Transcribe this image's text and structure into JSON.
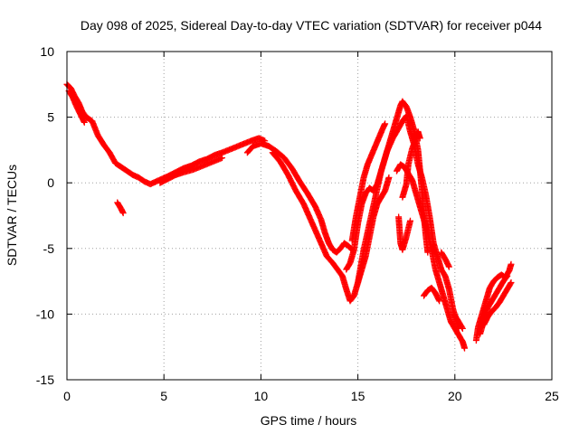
{
  "chart_data": {
    "type": "scatter",
    "title": "Day 098 of 2025, Sidereal Day-to-day VTEC variation (SDTVAR) for receiver p044",
    "xlabel": "GPS time / hours",
    "ylabel": "SDTVAR / TECUs",
    "xlim": [
      0,
      25
    ],
    "ylim": [
      -15,
      10
    ],
    "xticks": [
      "0",
      "5",
      "10",
      "15",
      "20",
      "25"
    ],
    "yticks": [
      "10",
      "5",
      "0",
      "-5",
      "-10",
      "-15"
    ],
    "grid": true,
    "marker": "+",
    "series": [
      {
        "name": "SDTVAR",
        "color": "#ff0000",
        "tracks": [
          [
            [
              0.0,
              7.5
            ],
            [
              0.2,
              7.2
            ],
            [
              0.4,
              6.6
            ],
            [
              0.6,
              6.1
            ],
            [
              0.8,
              5.4
            ],
            [
              1.0,
              5.0
            ],
            [
              1.3,
              4.7
            ],
            [
              1.6,
              3.6
            ],
            [
              1.9,
              2.9
            ],
            [
              2.2,
              2.3
            ],
            [
              2.5,
              1.5
            ],
            [
              2.8,
              1.2
            ],
            [
              3.1,
              0.9
            ],
            [
              3.4,
              0.6
            ],
            [
              3.7,
              0.4
            ],
            [
              4.0,
              0.1
            ],
            [
              4.3,
              -0.1
            ],
            [
              4.6,
              0.1
            ],
            [
              4.9,
              0.3
            ],
            [
              5.2,
              0.5
            ],
            [
              5.6,
              0.8
            ],
            [
              6.0,
              1.1
            ],
            [
              6.4,
              1.3
            ],
            [
              6.8,
              1.6
            ],
            [
              7.2,
              1.8
            ],
            [
              7.6,
              2.1
            ],
            [
              8.0,
              2.3
            ],
            [
              8.5,
              2.6
            ],
            [
              9.0,
              2.9
            ],
            [
              9.5,
              3.2
            ],
            [
              9.9,
              3.4
            ],
            [
              10.2,
              3.2
            ]
          ],
          [
            [
              0.1,
              7.0
            ],
            [
              0.3,
              6.5
            ],
            [
              0.5,
              5.8
            ],
            [
              0.7,
              5.2
            ],
            [
              0.9,
              4.6
            ]
          ],
          [
            [
              2.6,
              -1.5
            ],
            [
              2.8,
              -2.0
            ],
            [
              2.9,
              -2.3
            ]
          ],
          [
            [
              4.8,
              0.0
            ],
            [
              5.2,
              0.3
            ],
            [
              5.6,
              0.6
            ],
            [
              6.0,
              0.8
            ],
            [
              6.5,
              1.0
            ],
            [
              7.0,
              1.3
            ],
            [
              7.5,
              1.6
            ],
            [
              8.0,
              1.9
            ]
          ],
          [
            [
              9.3,
              2.3
            ],
            [
              9.6,
              2.8
            ],
            [
              10.0,
              3.0
            ],
            [
              10.4,
              2.8
            ],
            [
              10.8,
              2.4
            ],
            [
              11.2,
              1.9
            ],
            [
              11.6,
              1.1
            ],
            [
              12.0,
              0.1
            ],
            [
              12.4,
              -0.8
            ],
            [
              12.8,
              -1.8
            ],
            [
              13.1,
              -2.8
            ],
            [
              13.3,
              -3.8
            ],
            [
              13.5,
              -4.6
            ],
            [
              13.7,
              -5.1
            ],
            [
              13.9,
              -5.3
            ],
            [
              14.1,
              -5.0
            ],
            [
              14.3,
              -4.6
            ],
            [
              14.5,
              -4.8
            ],
            [
              14.7,
              -5.1
            ]
          ],
          [
            [
              10.6,
              2.3
            ],
            [
              11.0,
              1.6
            ],
            [
              11.4,
              0.6
            ],
            [
              11.8,
              -0.6
            ],
            [
              12.2,
              -1.6
            ],
            [
              12.5,
              -2.6
            ],
            [
              12.8,
              -3.6
            ],
            [
              13.1,
              -4.6
            ],
            [
              13.4,
              -5.6
            ],
            [
              13.7,
              -6.1
            ],
            [
              13.9,
              -6.5
            ],
            [
              14.2,
              -7.1
            ],
            [
              14.4,
              -8.1
            ],
            [
              14.6,
              -9.0
            ],
            [
              14.8,
              -8.6
            ],
            [
              15.0,
              -7.6
            ],
            [
              15.2,
              -6.6
            ],
            [
              15.4,
              -5.6
            ],
            [
              15.6,
              -4.1
            ],
            [
              15.8,
              -2.6
            ],
            [
              16.0,
              -1.6
            ],
            [
              16.2,
              -1.1
            ],
            [
              16.4,
              -0.6
            ],
            [
              16.6,
              0.4
            ]
          ],
          [
            [
              14.7,
              -4.4
            ],
            [
              14.9,
              -2.6
            ],
            [
              15.1,
              -1.1
            ],
            [
              15.3,
              0.4
            ],
            [
              15.5,
              1.4
            ],
            [
              15.7,
              2.1
            ],
            [
              15.9,
              2.8
            ],
            [
              16.1,
              3.5
            ],
            [
              16.3,
              4.2
            ],
            [
              16.4,
              4.5
            ]
          ],
          [
            [
              14.4,
              -6.6
            ],
            [
              14.6,
              -6.1
            ],
            [
              14.8,
              -5.1
            ],
            [
              15.0,
              -3.1
            ],
            [
              15.2,
              -1.6
            ],
            [
              15.4,
              -0.8
            ],
            [
              15.6,
              -0.4
            ],
            [
              15.8,
              -0.6
            ],
            [
              16.0,
              -0.1
            ],
            [
              16.2,
              0.9
            ],
            [
              16.4,
              1.9
            ],
            [
              16.6,
              2.9
            ],
            [
              16.8,
              3.9
            ],
            [
              17.0,
              4.9
            ],
            [
              17.2,
              5.9
            ],
            [
              17.3,
              6.2
            ],
            [
              17.5,
              5.8
            ],
            [
              17.7,
              5.0
            ],
            [
              17.9,
              4.0
            ],
            [
              18.1,
              2.5
            ],
            [
              18.2,
              1.0
            ],
            [
              18.3,
              -0.5
            ],
            [
              18.4,
              -2.5
            ],
            [
              18.5,
              -4.0
            ],
            [
              18.6,
              -5.3
            ]
          ],
          [
            [
              15.0,
              -7.6
            ],
            [
              15.3,
              -5.1
            ],
            [
              15.6,
              -3.1
            ],
            [
              15.9,
              -1.1
            ],
            [
              16.2,
              0.9
            ],
            [
              16.5,
              2.4
            ],
            [
              16.8,
              3.4
            ],
            [
              17.0,
              3.9
            ],
            [
              17.3,
              4.7
            ],
            [
              17.5,
              5.1
            ],
            [
              17.7,
              3.9
            ],
            [
              17.9,
              2.9
            ],
            [
              18.1,
              1.4
            ],
            [
              18.3,
              0.4
            ],
            [
              18.5,
              -0.9
            ],
            [
              18.7,
              -2.6
            ],
            [
              18.8,
              -3.6
            ],
            [
              18.9,
              -4.6
            ],
            [
              19.1,
              -5.6
            ],
            [
              19.3,
              -6.6
            ],
            [
              19.5,
              -7.1
            ],
            [
              19.7,
              -8.1
            ],
            [
              19.9,
              -9.6
            ],
            [
              20.1,
              -10.6
            ],
            [
              20.2,
              -11.1
            ]
          ],
          [
            [
              17.0,
              0.9
            ],
            [
              17.2,
              1.4
            ],
            [
              17.4,
              1.2
            ],
            [
              17.6,
              0.7
            ],
            [
              17.8,
              0.2
            ],
            [
              18.0,
              -0.8
            ],
            [
              18.2,
              -1.8
            ],
            [
              18.4,
              -2.8
            ],
            [
              18.6,
              -3.8
            ],
            [
              18.8,
              -5.1
            ],
            [
              19.0,
              -6.6
            ],
            [
              19.2,
              -7.6
            ],
            [
              19.4,
              -8.6
            ],
            [
              19.6,
              -9.6
            ],
            [
              19.8,
              -10.6
            ],
            [
              20.0,
              -11.1
            ],
            [
              20.2,
              -11.6
            ],
            [
              20.4,
              -12.1
            ],
            [
              20.5,
              -12.6
            ]
          ],
          [
            [
              17.3,
              -1.1
            ],
            [
              17.5,
              -0.1
            ],
            [
              17.6,
              1.4
            ],
            [
              17.8,
              2.6
            ],
            [
              18.0,
              3.4
            ],
            [
              18.1,
              3.9
            ],
            [
              18.2,
              3.4
            ]
          ],
          [
            [
              17.1,
              -2.6
            ],
            [
              17.2,
              -4.6
            ],
            [
              17.3,
              -5.1
            ],
            [
              17.5,
              -4.1
            ],
            [
              17.7,
              -2.9
            ]
          ],
          [
            [
              18.4,
              -8.6
            ],
            [
              18.6,
              -8.2
            ],
            [
              18.8,
              -8.0
            ],
            [
              19.0,
              -8.4
            ],
            [
              19.2,
              -9.0
            ]
          ],
          [
            [
              19.3,
              -5.3
            ],
            [
              19.5,
              -5.8
            ],
            [
              19.7,
              -6.4
            ]
          ],
          [
            [
              20.0,
              -10.1
            ],
            [
              20.2,
              -10.6
            ],
            [
              20.4,
              -11.1
            ]
          ],
          [
            [
              21.1,
              -12.0
            ],
            [
              21.2,
              -11.0
            ],
            [
              21.4,
              -10.0
            ],
            [
              21.6,
              -9.0
            ],
            [
              21.8,
              -8.0
            ],
            [
              22.0,
              -7.5
            ],
            [
              22.2,
              -7.2
            ],
            [
              22.4,
              -7.0
            ],
            [
              22.6,
              -7.2
            ],
            [
              22.8,
              -6.7
            ],
            [
              22.9,
              -6.2
            ]
          ],
          [
            [
              21.3,
              -11.5
            ],
            [
              21.5,
              -10.5
            ],
            [
              21.7,
              -9.5
            ],
            [
              21.9,
              -9.0
            ],
            [
              22.1,
              -8.5
            ],
            [
              22.3,
              -8.0
            ],
            [
              22.5,
              -7.5
            ],
            [
              22.7,
              -7.1
            ]
          ],
          [
            [
              21.5,
              -10.8
            ],
            [
              21.7,
              -10.2
            ],
            [
              21.9,
              -9.8
            ],
            [
              22.1,
              -9.5
            ],
            [
              22.3,
              -9.1
            ],
            [
              22.5,
              -8.6
            ],
            [
              22.7,
              -8.1
            ],
            [
              22.9,
              -7.6
            ]
          ]
        ]
      }
    ]
  }
}
